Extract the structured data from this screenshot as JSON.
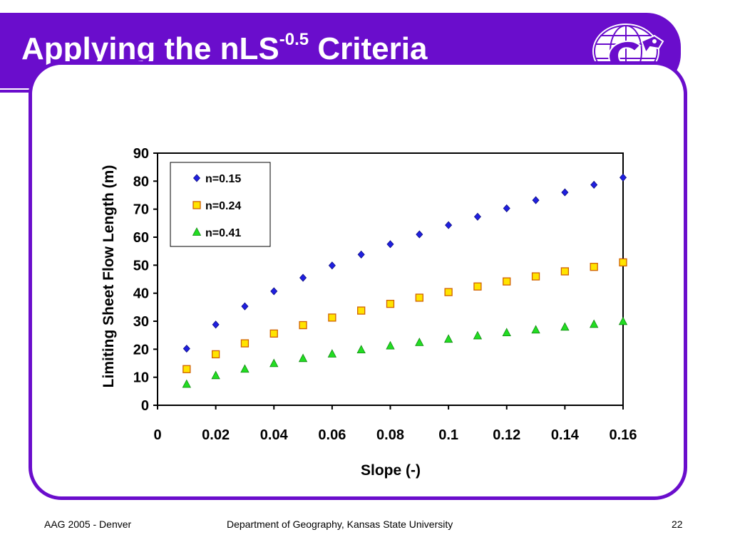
{
  "slide": {
    "title_main": "Applying the nLS",
    "title_sup": "-0.5",
    "title_end": " Criteria"
  },
  "footer": {
    "left": "AAG 2005 - Denver",
    "center": "Department of Geography, Kansas State University",
    "page": "22"
  },
  "logo": {
    "icon": "wildcat-globe-logo-icon"
  },
  "colors": {
    "accent": "#6a0dcc",
    "series1": "#1f1fe0",
    "series2": "#ffe400",
    "series3": "#22dd22"
  },
  "chart_data": {
    "type": "scatter",
    "title": "",
    "xlabel": "Slope (-)",
    "ylabel": "Limiting Sheet Flow Length (m)",
    "xlim": [
      0,
      0.16
    ],
    "ylim": [
      0,
      90
    ],
    "x_ticks": [
      "0",
      "0.02",
      "0.04",
      "0.06",
      "0.08",
      "0.1",
      "0.12",
      "0.14",
      "0.16"
    ],
    "y_ticks": [
      "0",
      "10",
      "20",
      "30",
      "40",
      "50",
      "60",
      "70",
      "80",
      "90"
    ],
    "legend_position": "top-left",
    "x": [
      0.01,
      0.02,
      0.03,
      0.04,
      0.05,
      0.06,
      0.07,
      0.08,
      0.09,
      0.1,
      0.11,
      0.12,
      0.13,
      0.14,
      0.15,
      0.16
    ],
    "series": [
      {
        "name": "n=0.15",
        "marker": "diamond",
        "color": "#1f1fe0",
        "values": [
          20.2,
          28.8,
          35.3,
          40.7,
          45.5,
          49.9,
          53.8,
          57.5,
          61.0,
          64.3,
          67.3,
          70.3,
          73.2,
          76.0,
          78.7,
          81.3
        ]
      },
      {
        "name": "n=0.24",
        "marker": "square",
        "color": "#ffe400",
        "values": [
          12.9,
          18.2,
          22.1,
          25.6,
          28.6,
          31.3,
          33.8,
          36.2,
          38.4,
          40.4,
          42.4,
          44.2,
          46.0,
          47.8,
          49.4,
          51.0
        ]
      },
      {
        "name": "n=0.41",
        "marker": "triangle",
        "color": "#22dd22",
        "values": [
          7.5,
          10.6,
          12.9,
          14.9,
          16.7,
          18.3,
          19.8,
          21.2,
          22.4,
          23.6,
          24.8,
          25.9,
          26.9,
          27.9,
          28.9,
          29.9
        ]
      }
    ]
  }
}
